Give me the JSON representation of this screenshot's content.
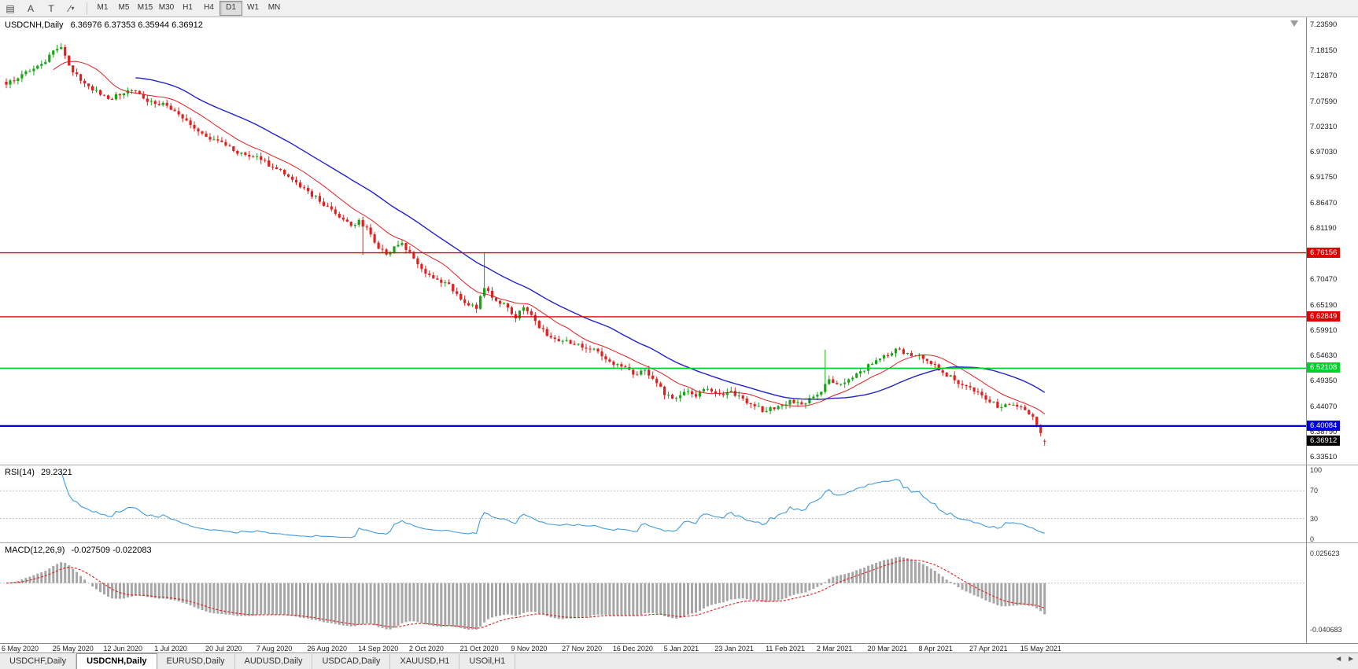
{
  "toolbar": {
    "left_buttons": [
      {
        "name": "chart-window-icon",
        "glyph": "▤"
      },
      {
        "name": "letter-a-tool",
        "glyph": "A"
      },
      {
        "name": "text-tool",
        "glyph": "T"
      },
      {
        "name": "line-tools-dropdown",
        "glyph": "∕",
        "caret": "▾"
      }
    ],
    "timeframes": [
      "M1",
      "M5",
      "M15",
      "M30",
      "H1",
      "H4",
      "D1",
      "W1",
      "MN"
    ],
    "active_timeframe": "D1"
  },
  "chart": {
    "title": "USDCNH,Daily",
    "ohlc_text": "6.36976 6.37353 6.35944 6.36912",
    "price_ticks": [
      "7.23590",
      "7.18150",
      "7.12870",
      "7.07590",
      "7.02310",
      "6.97030",
      "6.91750",
      "6.86470",
      "6.81190",
      "6.75910",
      "6.70470",
      "6.65190",
      "6.59910",
      "6.54630",
      "6.49350",
      "6.44070",
      "6.38790",
      "6.33510"
    ],
    "hlines": [
      {
        "price": 6.76156,
        "label": "6.76156",
        "color": "#e00000",
        "w": 1.4
      },
      {
        "price": 6.62849,
        "label": "6.62849",
        "color": "#e00000",
        "w": 1.4
      },
      {
        "price": 6.52108,
        "label": "6.52108",
        "color": "#00d02a",
        "w": 1.6
      },
      {
        "price": 6.40084,
        "label": "6.40084",
        "color": "#0000e0",
        "w": 2.2
      }
    ],
    "current_price": {
      "value": 6.36912,
      "label": "6.36912",
      "color": "#000000"
    }
  },
  "rsi": {
    "name": "RSI(14)",
    "value": "29.2321",
    "levels": [
      "100",
      "70",
      "30",
      "0"
    ],
    "line_color": "#3e9adf",
    "level_line_color": "#c4c4c4"
  },
  "macd": {
    "name": "MACD(12,26,9)",
    "values": "-0.027509 -0.022083",
    "axis_labels": [
      {
        "text": "0.025623",
        "value": 0.025623
      },
      {
        "text": "-0.040683",
        "value": -0.040683
      }
    ],
    "hist_color": "#a6a6a6",
    "signal_color": "#e02020",
    "zero_line_color": "#c4c4c4"
  },
  "date_axis": [
    "6 May 2020",
    "25 May 2020",
    "12 Jun 2020",
    "1 Jul 2020",
    "20 Jul 2020",
    "7 Aug 2020",
    "26 Aug 2020",
    "14 Sep 2020",
    "2 Oct 2020",
    "21 Oct 2020",
    "9 Nov 2020",
    "27 Nov 2020",
    "16 Dec 2020",
    "5 Jan 2021",
    "23 Jan 2021",
    "11 Feb 2021",
    "2 Mar 2021",
    "20 Mar 2021",
    "8 Apr 2021",
    "27 Apr 2021",
    "15 May 2021"
  ],
  "tabs": [
    "USDCHF,Daily",
    "USDCNH,Daily",
    "EURUSD,Daily",
    "AUDUSD,Daily",
    "USDCAD,Daily",
    "XAUUSD,H1",
    "USOil,H1"
  ],
  "active_tab": "USDCNH,Daily",
  "tab_scroll": {
    "left": "◄",
    "right": "►"
  },
  "chart_data": {
    "type": "candlestick",
    "symbol": "USDCNH",
    "timeframe": "Daily",
    "candle_count": 266,
    "y_domain": [
      6.3351,
      7.2359
    ],
    "up_color": "#17a417",
    "down_color": "#e02020",
    "last_candle": {
      "open": 6.36976,
      "high": 6.37353,
      "low": 6.35944,
      "close": 6.36912
    },
    "close_waypoints": [
      [
        0,
        7.112
      ],
      [
        3,
        7.125
      ],
      [
        6,
        7.14
      ],
      [
        9,
        7.155
      ],
      [
        12,
        7.183
      ],
      [
        14,
        7.19
      ],
      [
        16,
        7.152
      ],
      [
        19,
        7.12
      ],
      [
        22,
        7.1
      ],
      [
        26,
        7.082
      ],
      [
        29,
        7.09
      ],
      [
        32,
        7.1
      ],
      [
        35,
        7.083
      ],
      [
        38,
        7.072
      ],
      [
        41,
        7.068
      ],
      [
        44,
        7.05
      ],
      [
        47,
        7.028
      ],
      [
        50,
        7.01
      ],
      [
        53,
        6.998
      ],
      [
        56,
        6.985
      ],
      [
        59,
        6.968
      ],
      [
        62,
        6.962
      ],
      [
        65,
        6.955
      ],
      [
        68,
        6.94
      ],
      [
        71,
        6.925
      ],
      [
        74,
        6.908
      ],
      [
        77,
        6.89
      ],
      [
        80,
        6.868
      ],
      [
        83,
        6.852
      ],
      [
        85,
        6.835
      ],
      [
        88,
        6.818
      ],
      [
        90,
        6.83
      ],
      [
        93,
        6.8
      ],
      [
        95,
        6.77
      ],
      [
        97,
        6.758
      ],
      [
        99,
        6.775
      ],
      [
        101,
        6.782
      ],
      [
        104,
        6.75
      ],
      [
        106,
        6.728
      ],
      [
        109,
        6.708
      ],
      [
        112,
        6.7
      ],
      [
        115,
        6.676
      ],
      [
        118,
        6.652
      ],
      [
        120,
        6.645
      ],
      [
        122,
        6.688
      ],
      [
        124,
        6.668
      ],
      [
        127,
        6.656
      ],
      [
        130,
        6.625
      ],
      [
        132,
        6.648
      ],
      [
        134,
        6.632
      ],
      [
        136,
        6.605
      ],
      [
        139,
        6.585
      ],
      [
        142,
        6.578
      ],
      [
        145,
        6.57
      ],
      [
        148,
        6.562
      ],
      [
        151,
        6.556
      ],
      [
        154,
        6.535
      ],
      [
        157,
        6.525
      ],
      [
        160,
        6.508
      ],
      [
        163,
        6.518
      ],
      [
        166,
        6.49
      ],
      [
        168,
        6.465
      ],
      [
        170,
        6.458
      ],
      [
        173,
        6.472
      ],
      [
        176,
        6.462
      ],
      [
        179,
        6.478
      ],
      [
        182,
        6.468
      ],
      [
        185,
        6.474
      ],
      [
        188,
        6.458
      ],
      [
        191,
        6.442
      ],
      [
        194,
        6.432
      ],
      [
        197,
        6.442
      ],
      [
        200,
        6.455
      ],
      [
        203,
        6.446
      ],
      [
        206,
        6.462
      ],
      [
        208,
        6.472
      ],
      [
        210,
        6.498
      ],
      [
        212,
        6.488
      ],
      [
        215,
        6.498
      ],
      [
        218,
        6.515
      ],
      [
        221,
        6.53
      ],
      [
        224,
        6.548
      ],
      [
        227,
        6.562
      ],
      [
        230,
        6.553
      ],
      [
        233,
        6.548
      ],
      [
        236,
        6.53
      ],
      [
        239,
        6.512
      ],
      [
        242,
        6.496
      ],
      [
        245,
        6.484
      ],
      [
        248,
        6.472
      ],
      [
        251,
        6.45
      ],
      [
        254,
        6.44
      ],
      [
        257,
        6.445
      ],
      [
        260,
        6.434
      ],
      [
        262,
        6.42
      ],
      [
        263,
        6.403
      ],
      [
        264,
        6.386
      ],
      [
        265,
        6.3691
      ]
    ],
    "wick_spikes": [
      {
        "i": 14,
        "high": 7.198
      },
      {
        "i": 91,
        "low": 6.757
      },
      {
        "i": 122,
        "high": 6.763
      },
      {
        "i": 209,
        "high": 6.56
      }
    ],
    "overlays": [
      {
        "type": "sma",
        "period": 13,
        "color": "#e02020",
        "name": "ma-fast-line",
        "width": 1
      },
      {
        "type": "sma",
        "period": 34,
        "color": "#2121cc",
        "name": "ma-slow-line",
        "width": 1.4
      }
    ],
    "noise_seed": 20210524,
    "dates_every": 13
  }
}
